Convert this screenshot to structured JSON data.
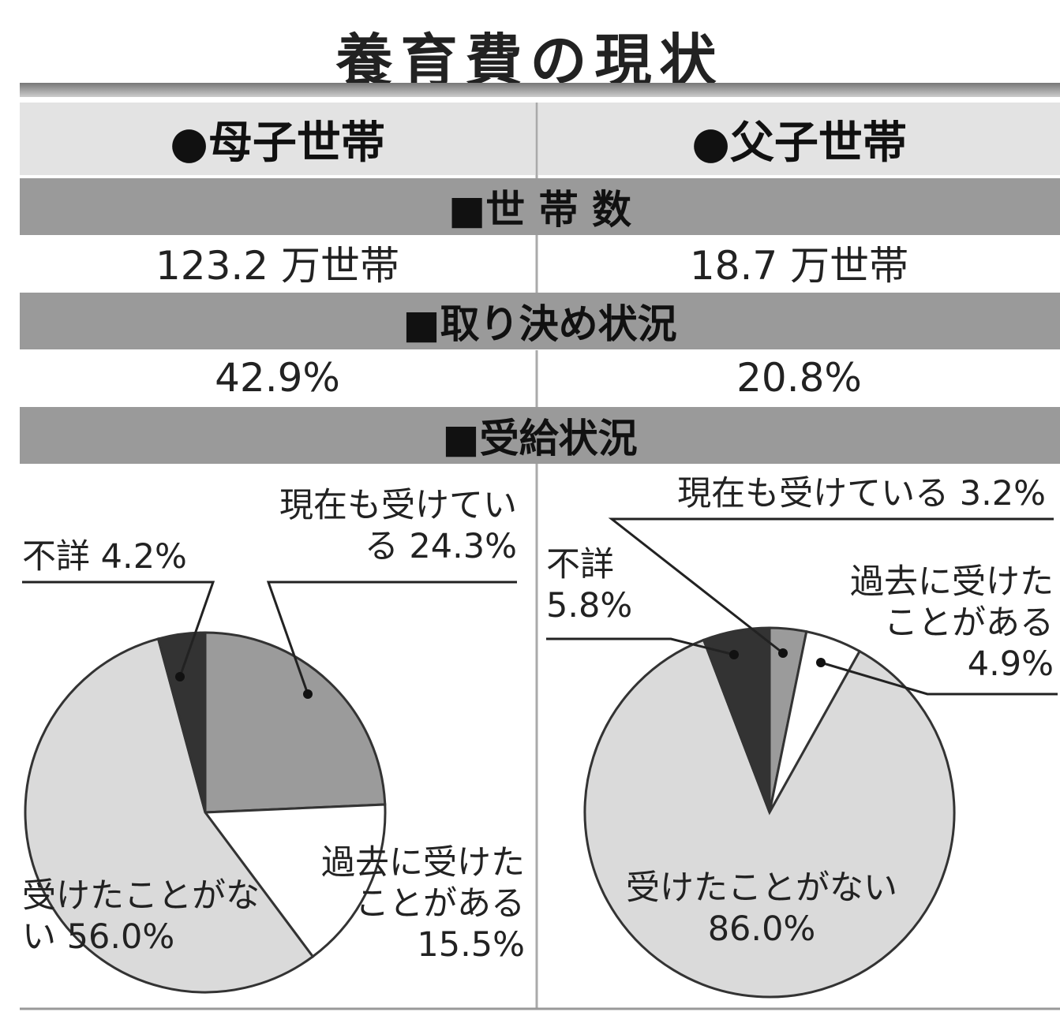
{
  "title": "養育費の現状",
  "headers": [
    "●母子世帯",
    "●父子世帯"
  ],
  "sections": [
    {
      "label": "■世 帯 数",
      "values": [
        "123.2 万世帯",
        "18.7 万世帯"
      ]
    },
    {
      "label": "■取り決め状況",
      "values": [
        "42.9%",
        "20.8%"
      ]
    },
    {
      "label": "■受給状況"
    }
  ],
  "chart_data": [
    {
      "type": "pie",
      "categories": [
        "現在も受けている",
        "過去に受けたことがある",
        "受けたことがない",
        "不詳"
      ],
      "values": [
        24.3,
        15.5,
        56.0,
        4.2
      ],
      "value_labels": [
        "24.3%",
        "15.5%",
        "56.0%",
        "4.2%"
      ],
      "colors": [
        "#9b9b9b",
        "#ffffff",
        "#dadada",
        "#333333"
      ]
    },
    {
      "type": "pie",
      "categories": [
        "現在も受けている",
        "過去に受けたことがある",
        "受けたことがない",
        "不詳"
      ],
      "values": [
        3.2,
        4.9,
        86.0,
        5.8
      ],
      "value_labels": [
        "3.2%",
        "4.9%",
        "86.0%",
        "5.8%"
      ],
      "colors": [
        "#9b9b9b",
        "#ffffff",
        "#dadada",
        "#333333"
      ]
    }
  ]
}
